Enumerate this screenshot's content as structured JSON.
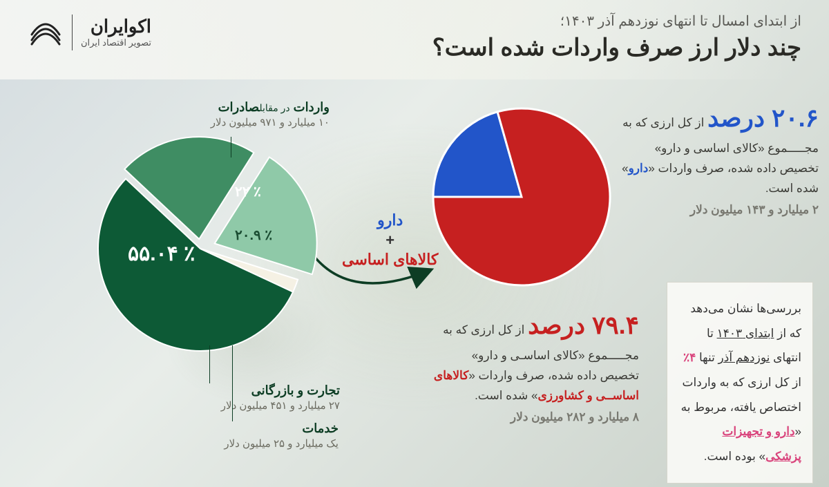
{
  "header": {
    "eyebrow": "از ابتدای امسال تا انتهای نوزدهم آذر ۱۴۰۳؛",
    "title": "چند دلار ارز صرف واردات شده است؟",
    "brand": "اکوایران",
    "brand_sub": "تصویر اقتصاد ایران"
  },
  "right_pie": {
    "type": "pie",
    "slices": [
      {
        "label": "دارو",
        "value": 20.6,
        "color": "#2255c9"
      },
      {
        "label": "کالاهای اساسی",
        "value": 79.4,
        "color": "#c62020"
      }
    ],
    "border_color": "#ffffff",
    "border_width": 3,
    "radius": 128,
    "start_angle_deg": -90
  },
  "stat_top": {
    "pct": "۲۰.۶ درصد",
    "pct_color": "#2255c9",
    "text_pre": "از کل ارزی که به مجـــــموع «کالای اساسی و دارو» تخصیص داده شده، صرف واردات «",
    "em": "دارو",
    "text_post": "» شده است.",
    "amount": "۲ میلیارد و ۱۴۳ میلیون دلار"
  },
  "stat_bottom": {
    "pct": "۷۹.۴ درصد",
    "pct_color": "#c62020",
    "text_pre": "از کل ارزی که به مجـــــموع «کالای اساسـی و دارو» تخصیص داده شده، صرف واردات «",
    "em": "کالاهای اساســی و کشاورزی",
    "text_post": "» شده است.",
    "amount": "۸ میلیارد و ۲۸۲ میلیون دلار"
  },
  "center": {
    "top": "دارو",
    "plus": "+",
    "bottom": "کالاهای اساسی"
  },
  "left_pie": {
    "type": "pie_exploded",
    "slices": [
      {
        "label": "تجارت و بازرگانی",
        "value": 55.04,
        "color": "#0d5a36",
        "explode": 0,
        "text_color": "#ffffff"
      },
      {
        "label": "واردات در مقابل صادرات",
        "value": 22.0,
        "color": "#3f8d63",
        "explode": 14,
        "text_color": "#ffffff"
      },
      {
        "label": "دارو + کالاهای اساسی",
        "value": 20.9,
        "color": "#8fc9a8",
        "explode": 22,
        "text_color": "#1c4d33"
      },
      {
        "label": "خدمات",
        "value": 2.06,
        "color": "#f5f1e4",
        "explode": 0,
        "text_color": "#1c4d33"
      }
    ],
    "radius": 148,
    "label_big": "۵۵.۰۴ ٪",
    "label_mid1": "۲۲ ٪",
    "label_mid2": "۲۰.۹ ٪"
  },
  "callouts": {
    "top": {
      "head_main": "واردات",
      "head_thin": "در مقابل",
      "head_main2": "صادرات",
      "sub": "۱۰ میلیارد و ۹۷۱ میلیون دلار"
    },
    "trade": {
      "head": "تجارت و بازرگانی",
      "sub": "۲۷ میلیارد و ۴۵۱ میلیون دلار"
    },
    "services": {
      "head": "خدمات",
      "sub": "یک میلیارد و ۲۵ میلیون دلار"
    }
  },
  "sidebox": {
    "l1a": "بررسی‌ها نشان می‌دهد که",
    "l1b": "از ",
    "l1c": "ابتدای ۱۴۰۳",
    "l1d": " تا انتهای",
    "l2a": "نوزدهم آذر",
    "l2b": " تنها ",
    "l2c": "۴٪",
    "l2d": " از",
    "l3": "کل ارزی که به واردات",
    "l4": "اختصاص یافته، مربوط به",
    "l5a": "«",
    "l5b": "دارو و تجهیزات پزشکی",
    "l5c": "»",
    "l6": "بوده است."
  },
  "colors": {
    "blue": "#2255c9",
    "red": "#c62020",
    "dark_green": "#0d5a36",
    "mid_green": "#3f8d63",
    "light_green": "#8fc9a8",
    "cream": "#f5f1e4",
    "text_dark": "#2a2a25",
    "text_grey": "#787870"
  }
}
